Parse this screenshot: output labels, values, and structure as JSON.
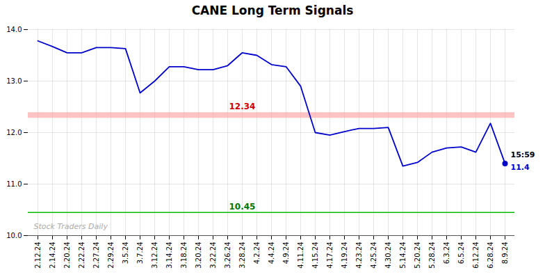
{
  "chart_data": {
    "type": "line",
    "title": "CANE Long Term Signals",
    "categories": [
      "2.12.24",
      "2.14.24",
      "2.20.24",
      "2.22.24",
      "2.27.24",
      "2.29.24",
      "3.5.24",
      "3.7.24",
      "3.12.24",
      "3.14.24",
      "3.18.24",
      "3.20.24",
      "3.22.24",
      "3.26.24",
      "3.28.24",
      "4.2.24",
      "4.4.24",
      "4.9.24",
      "4.11.24",
      "4.15.24",
      "4.17.24",
      "4.19.24",
      "4.23.24",
      "4.25.24",
      "4.30.24",
      "5.14.24",
      "5.20.24",
      "5.28.24",
      "6.3.24",
      "6.5.24",
      "6.12.24",
      "6.28.24",
      "8.9.24"
    ],
    "values": [
      13.78,
      13.67,
      13.55,
      13.55,
      13.65,
      13.65,
      13.63,
      12.77,
      13.0,
      13.28,
      13.28,
      13.22,
      13.22,
      13.3,
      13.55,
      13.5,
      13.32,
      13.28,
      12.9,
      12.0,
      11.95,
      12.02,
      12.08,
      12.08,
      12.1,
      11.35,
      11.42,
      11.62,
      11.7,
      11.72,
      11.62,
      12.18,
      11.4
    ],
    "color": "#0000cc",
    "reference_lines": [
      {
        "value": 12.34,
        "label": "12.34",
        "color": "#ffaaaa",
        "label_color": "#cc0000",
        "line_style": "band"
      },
      {
        "value": 10.45,
        "label": "10.45",
        "color": "#00bb00",
        "label_color": "#007700",
        "line_style": "solid"
      }
    ],
    "last_point_labels": [
      "15:59",
      "11.4"
    ],
    "watermark": "Stock Traders Daily",
    "watermark_color": "#aaaaaa",
    "ylim": [
      10.0,
      14.0
    ],
    "yticks": [
      10,
      11,
      12,
      13,
      14
    ],
    "grid": true
  }
}
